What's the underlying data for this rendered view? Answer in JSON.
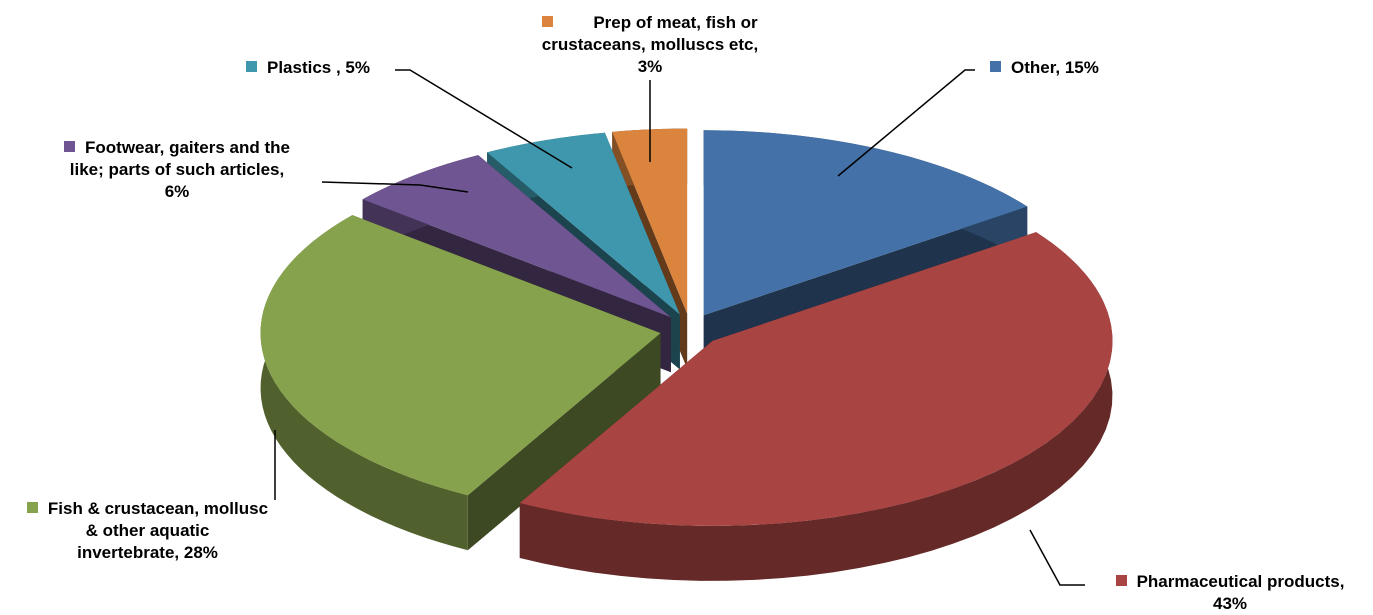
{
  "chart_data": {
    "type": "pie",
    "title": "",
    "three_d": true,
    "exploded": true,
    "slices": [
      {
        "label": "Other",
        "value": 15,
        "data_label": "Other, 15%",
        "color": "#4472A8"
      },
      {
        "label": "Pharmaceutical products",
        "value": 43,
        "data_label": "Pharmaceutical products, 43%",
        "color": "#A84442"
      },
      {
        "label": "Fish & crustacean, mollusc & other aquatic invertebrate",
        "value": 28,
        "data_label": "Fish & crustacean, mollusc & other aquatic invertebrate, 28%",
        "color": "#87A24C"
      },
      {
        "label": "Footwear, gaiters and the like; parts of such articles",
        "value": 6,
        "data_label": "Footwear, gaiters and the like; parts of such articles, 6%",
        "color": "#6F5591"
      },
      {
        "label": "Plastics",
        "value": 5,
        "data_label": "Plastics , 5%",
        "color": "#3F97AE"
      },
      {
        "label": "Prep of meat, fish or crustaceans, molluscs etc",
        "value": 3,
        "data_label": "Prep of meat, fish or crustaceans, molluscs etc, 3%",
        "color": "#DB843D"
      }
    ]
  },
  "labels": {
    "other": {
      "l1": "Other, 15%",
      "l2": ""
    },
    "pharma": {
      "l1": "Pharmaceutical products,",
      "l2": "43%"
    },
    "fish": {
      "l1": "Fish & crustacean, mollusc",
      "l2": "& other aquatic",
      "l3": "invertebrate, 28%"
    },
    "footwear": {
      "l1": "Footwear, gaiters and the",
      "l2": "like; parts of such articles,",
      "l3": "6%"
    },
    "plastics": {
      "l1": "Plastics , 5%"
    },
    "prep": {
      "l1": "Prep of meat, fish or",
      "l2": "crustaceans, molluscs etc,",
      "l3": "3%"
    }
  }
}
